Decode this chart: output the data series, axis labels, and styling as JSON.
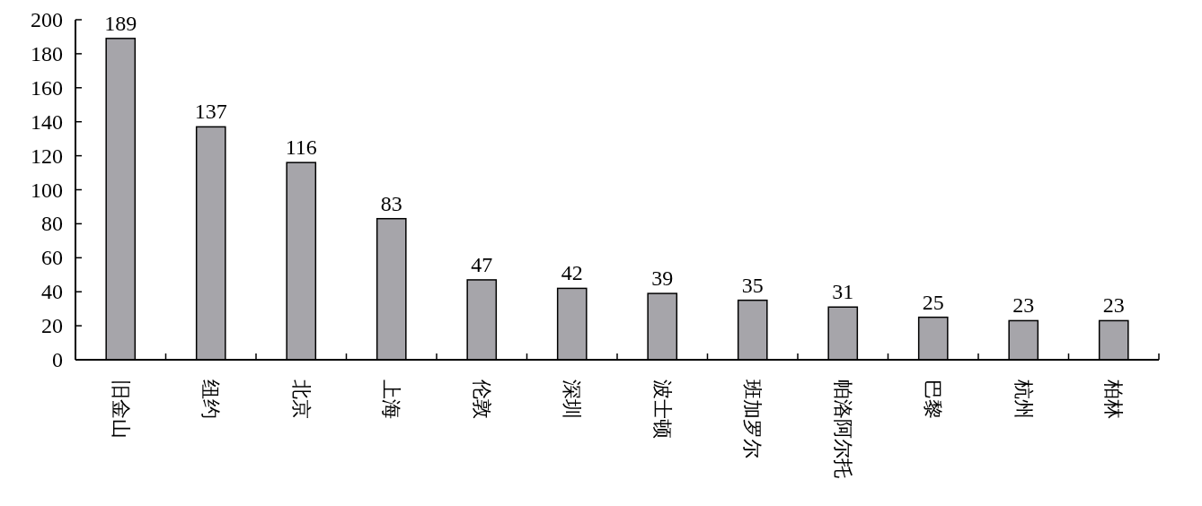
{
  "chart_data": {
    "type": "bar",
    "categories": [
      "旧金山",
      "纽约",
      "北京",
      "上海",
      "伦敦",
      "深圳",
      "波士顿",
      "班加罗尔",
      "帕洛阿尔托",
      "巴黎",
      "杭州",
      "柏林"
    ],
    "values": [
      189,
      137,
      116,
      83,
      47,
      42,
      39,
      35,
      31,
      25,
      23,
      23
    ],
    "color": "#a6a5aa",
    "ylim": [
      0,
      200
    ],
    "yticks": [
      0,
      20,
      40,
      60,
      80,
      100,
      120,
      140,
      160,
      180,
      200
    ],
    "data_labels": true,
    "grid": false
  }
}
